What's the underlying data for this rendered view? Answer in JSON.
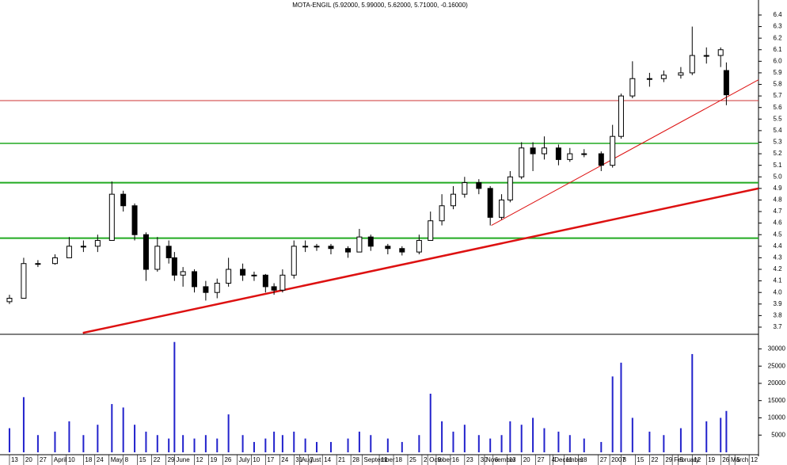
{
  "chart_data": {
    "type": "candlestick",
    "title": "MOTA-ENGIL (5.92000, 5.99000, 5.62000, 5.71000, -0.16000)",
    "x": [
      0,
      5,
      10,
      16,
      21,
      26,
      31,
      36,
      40,
      44,
      48,
      52,
      56,
      58,
      61,
      65,
      69,
      73,
      77,
      82,
      86,
      90,
      93,
      96,
      100,
      104,
      108,
      113,
      119,
      123,
      127,
      133,
      138,
      144,
      148,
      152,
      156,
      160,
      165,
      169,
      173,
      176,
      180,
      184,
      188,
      193,
      197,
      202,
      208,
      212,
      215,
      219,
      225,
      230,
      236,
      240,
      245,
      250,
      252
    ],
    "open": [
      3.92,
      3.95,
      4.25,
      4.25,
      4.3,
      4.4,
      4.4,
      4.45,
      4.85,
      4.75,
      4.5,
      4.2,
      4.4,
      4.3,
      4.15,
      4.18,
      4.05,
      4.0,
      4.08,
      4.2,
      4.15,
      4.15,
      4.05,
      4.02,
      4.15,
      4.4,
      4.4,
      4.4,
      4.38,
      4.35,
      4.48,
      4.4,
      4.38,
      4.35,
      4.45,
      4.62,
      4.75,
      4.85,
      4.95,
      4.9,
      4.65,
      4.8,
      5.0,
      5.25,
      5.2,
      5.25,
      5.15,
      5.2,
      5.2,
      5.1,
      5.35,
      5.7,
      5.85,
      5.85,
      5.88,
      5.9,
      6.05,
      6.05,
      5.92
    ],
    "high": [
      3.98,
      4.3,
      4.28,
      4.33,
      4.48,
      4.45,
      4.5,
      4.96,
      4.88,
      4.77,
      4.52,
      4.48,
      4.45,
      4.35,
      4.22,
      4.2,
      4.1,
      4.12,
      4.3,
      4.25,
      4.18,
      4.16,
      4.08,
      4.2,
      4.45,
      4.45,
      4.42,
      4.42,
      4.4,
      4.55,
      4.5,
      4.42,
      4.4,
      4.5,
      4.7,
      4.85,
      4.92,
      5.0,
      4.98,
      4.92,
      4.85,
      5.05,
      5.3,
      5.3,
      5.35,
      5.28,
      5.25,
      5.24,
      5.22,
      5.45,
      5.72,
      6.0,
      5.9,
      5.92,
      5.95,
      6.3,
      6.12,
      6.12,
      5.99
    ],
    "low": [
      3.9,
      3.95,
      4.22,
      4.24,
      4.3,
      4.35,
      4.35,
      4.45,
      4.7,
      4.45,
      4.1,
      4.18,
      4.25,
      4.1,
      4.05,
      4.0,
      3.93,
      3.95,
      4.05,
      4.1,
      4.1,
      4.0,
      3.98,
      4.0,
      4.12,
      4.35,
      4.36,
      4.33,
      4.3,
      4.35,
      4.36,
      4.33,
      4.32,
      4.33,
      4.45,
      4.58,
      4.72,
      4.82,
      4.85,
      4.58,
      4.63,
      4.78,
      4.98,
      5.05,
      5.15,
      5.1,
      5.13,
      5.17,
      5.05,
      5.08,
      5.33,
      5.68,
      5.78,
      5.82,
      5.85,
      5.88,
      5.98,
      5.95,
      5.62
    ],
    "close": [
      3.95,
      4.25,
      4.25,
      4.3,
      4.4,
      4.4,
      4.45,
      4.85,
      4.75,
      4.5,
      4.2,
      4.4,
      4.3,
      4.15,
      4.18,
      4.05,
      4.0,
      4.08,
      4.2,
      4.15,
      4.15,
      4.05,
      4.02,
      4.15,
      4.4,
      4.4,
      4.4,
      4.38,
      4.35,
      4.48,
      4.4,
      4.38,
      4.35,
      4.45,
      4.62,
      4.75,
      4.85,
      4.95,
      4.9,
      4.65,
      4.8,
      5.0,
      5.25,
      5.2,
      5.25,
      5.15,
      5.2,
      5.2,
      5.1,
      5.35,
      5.7,
      5.85,
      5.85,
      5.88,
      5.9,
      6.05,
      6.05,
      6.1,
      5.71
    ],
    "volume": [
      7000,
      16000,
      5000,
      6000,
      9000,
      5000,
      8000,
      14000,
      13000,
      8000,
      6000,
      5000,
      4000,
      32000,
      5000,
      4000,
      5000,
      4000,
      11000,
      5000,
      3000,
      4000,
      6000,
      5000,
      6000,
      4000,
      3000,
      3000,
      4000,
      6000,
      5000,
      4000,
      3000,
      5000,
      17000,
      9000,
      6000,
      8000,
      5000,
      4000,
      5000,
      9000,
      8000,
      10000,
      7000,
      6000,
      5000,
      4000,
      3000,
      22000,
      26000,
      10000,
      6000,
      5000,
      7000,
      28500,
      9000,
      10000,
      12000
    ],
    "up_color": "#ffffff",
    "down_color": "#000000",
    "volume_color": "#2222cc",
    "xlim": [
      -3.33,
      263.3
    ],
    "xticks": [
      {
        "value": 0,
        "label": "13"
      },
      {
        "value": 5,
        "label": "20"
      },
      {
        "value": 10,
        "label": "27"
      },
      {
        "value": 15,
        "label": "April"
      },
      {
        "value": 20,
        "label": "10"
      },
      {
        "value": 26,
        "label": "18"
      },
      {
        "value": 30,
        "label": "24"
      },
      {
        "value": 35,
        "label": "May"
      },
      {
        "value": 40,
        "label": "8"
      },
      {
        "value": 45,
        "label": "15"
      },
      {
        "value": 50,
        "label": "22"
      },
      {
        "value": 55,
        "label": "29"
      },
      {
        "value": 58,
        "label": "June"
      },
      {
        "value": 65,
        "label": "12"
      },
      {
        "value": 70,
        "label": "19"
      },
      {
        "value": 75,
        "label": "26"
      },
      {
        "value": 80,
        "label": "July"
      },
      {
        "value": 85,
        "label": "10"
      },
      {
        "value": 90,
        "label": "17"
      },
      {
        "value": 95,
        "label": "24"
      },
      {
        "value": 100,
        "label": "31"
      },
      {
        "value": 102,
        "label": "August"
      },
      {
        "value": 105,
        "label": "7"
      },
      {
        "value": 110,
        "label": "14"
      },
      {
        "value": 115,
        "label": "21"
      },
      {
        "value": 120,
        "label": "28"
      },
      {
        "value": 124,
        "label": "September"
      },
      {
        "value": 130,
        "label": "11"
      },
      {
        "value": 135,
        "label": "18"
      },
      {
        "value": 140,
        "label": "25"
      },
      {
        "value": 145,
        "label": "2"
      },
      {
        "value": 147,
        "label": "October"
      },
      {
        "value": 150,
        "label": "9"
      },
      {
        "value": 155,
        "label": "16"
      },
      {
        "value": 160,
        "label": "23"
      },
      {
        "value": 165,
        "label": "30"
      },
      {
        "value": 167,
        "label": "November"
      },
      {
        "value": 170,
        "label": "6"
      },
      {
        "value": 175,
        "label": "13"
      },
      {
        "value": 180,
        "label": "20"
      },
      {
        "value": 185,
        "label": "27"
      },
      {
        "value": 190,
        "label": "4"
      },
      {
        "value": 191,
        "label": "December"
      },
      {
        "value": 195,
        "label": "11"
      },
      {
        "value": 200,
        "label": "18"
      },
      {
        "value": 207,
        "label": "27"
      },
      {
        "value": 211,
        "label": "2007"
      },
      {
        "value": 215,
        "label": "8"
      },
      {
        "value": 220,
        "label": "15"
      },
      {
        "value": 225,
        "label": "22"
      },
      {
        "value": 230,
        "label": "29"
      },
      {
        "value": 233,
        "label": "February"
      },
      {
        "value": 235,
        "label": "5"
      },
      {
        "value": 240,
        "label": "12"
      },
      {
        "value": 245,
        "label": "19"
      },
      {
        "value": 250,
        "label": "26"
      },
      {
        "value": 253,
        "label": "March"
      },
      {
        "value": 255,
        "label": "5"
      },
      {
        "value": 260,
        "label": "12"
      }
    ],
    "ylim": [
      3.645,
      6.53
    ],
    "yticks": [
      3.7,
      3.8,
      3.9,
      {
        "value": 4,
        "label": "4.0"
      },
      4.1,
      4.2,
      4.3,
      4.4,
      4.5,
      4.6,
      4.7,
      4.8,
      4.9,
      {
        "value": 5,
        "label": "5.0"
      },
      5.1,
      5.2,
      5.3,
      5.4,
      5.5,
      5.6,
      5.7,
      5.8,
      5.9,
      {
        "value": 6,
        "label": "6.0"
      },
      6.1,
      6.2,
      6.3,
      6.4
    ],
    "volume_ylim": [
      0,
      34000
    ],
    "volume_yticks": [
      5000,
      10000,
      15000,
      20000,
      25000,
      30000
    ],
    "hlines": [
      {
        "value": 5.66,
        "color": "#cc3333",
        "width": 1
      },
      {
        "value": 5.29,
        "color": "#22aa22",
        "width": 1.5
      },
      {
        "value": 4.95,
        "color": "#22aa22",
        "width": 2
      },
      {
        "value": 4.47,
        "color": "#22aa22",
        "width": 2
      }
    ],
    "trendlines": [
      {
        "x": [
          25.8,
          263.3
        ],
        "y": [
          3.65,
          4.9
        ],
        "color": "#dd1111",
        "width": 2.5
      },
      {
        "x": [
          169.4,
          263.3
        ],
        "y": [
          4.58,
          5.84
        ],
        "color": "#dd1111",
        "width": 1
      }
    ]
  }
}
